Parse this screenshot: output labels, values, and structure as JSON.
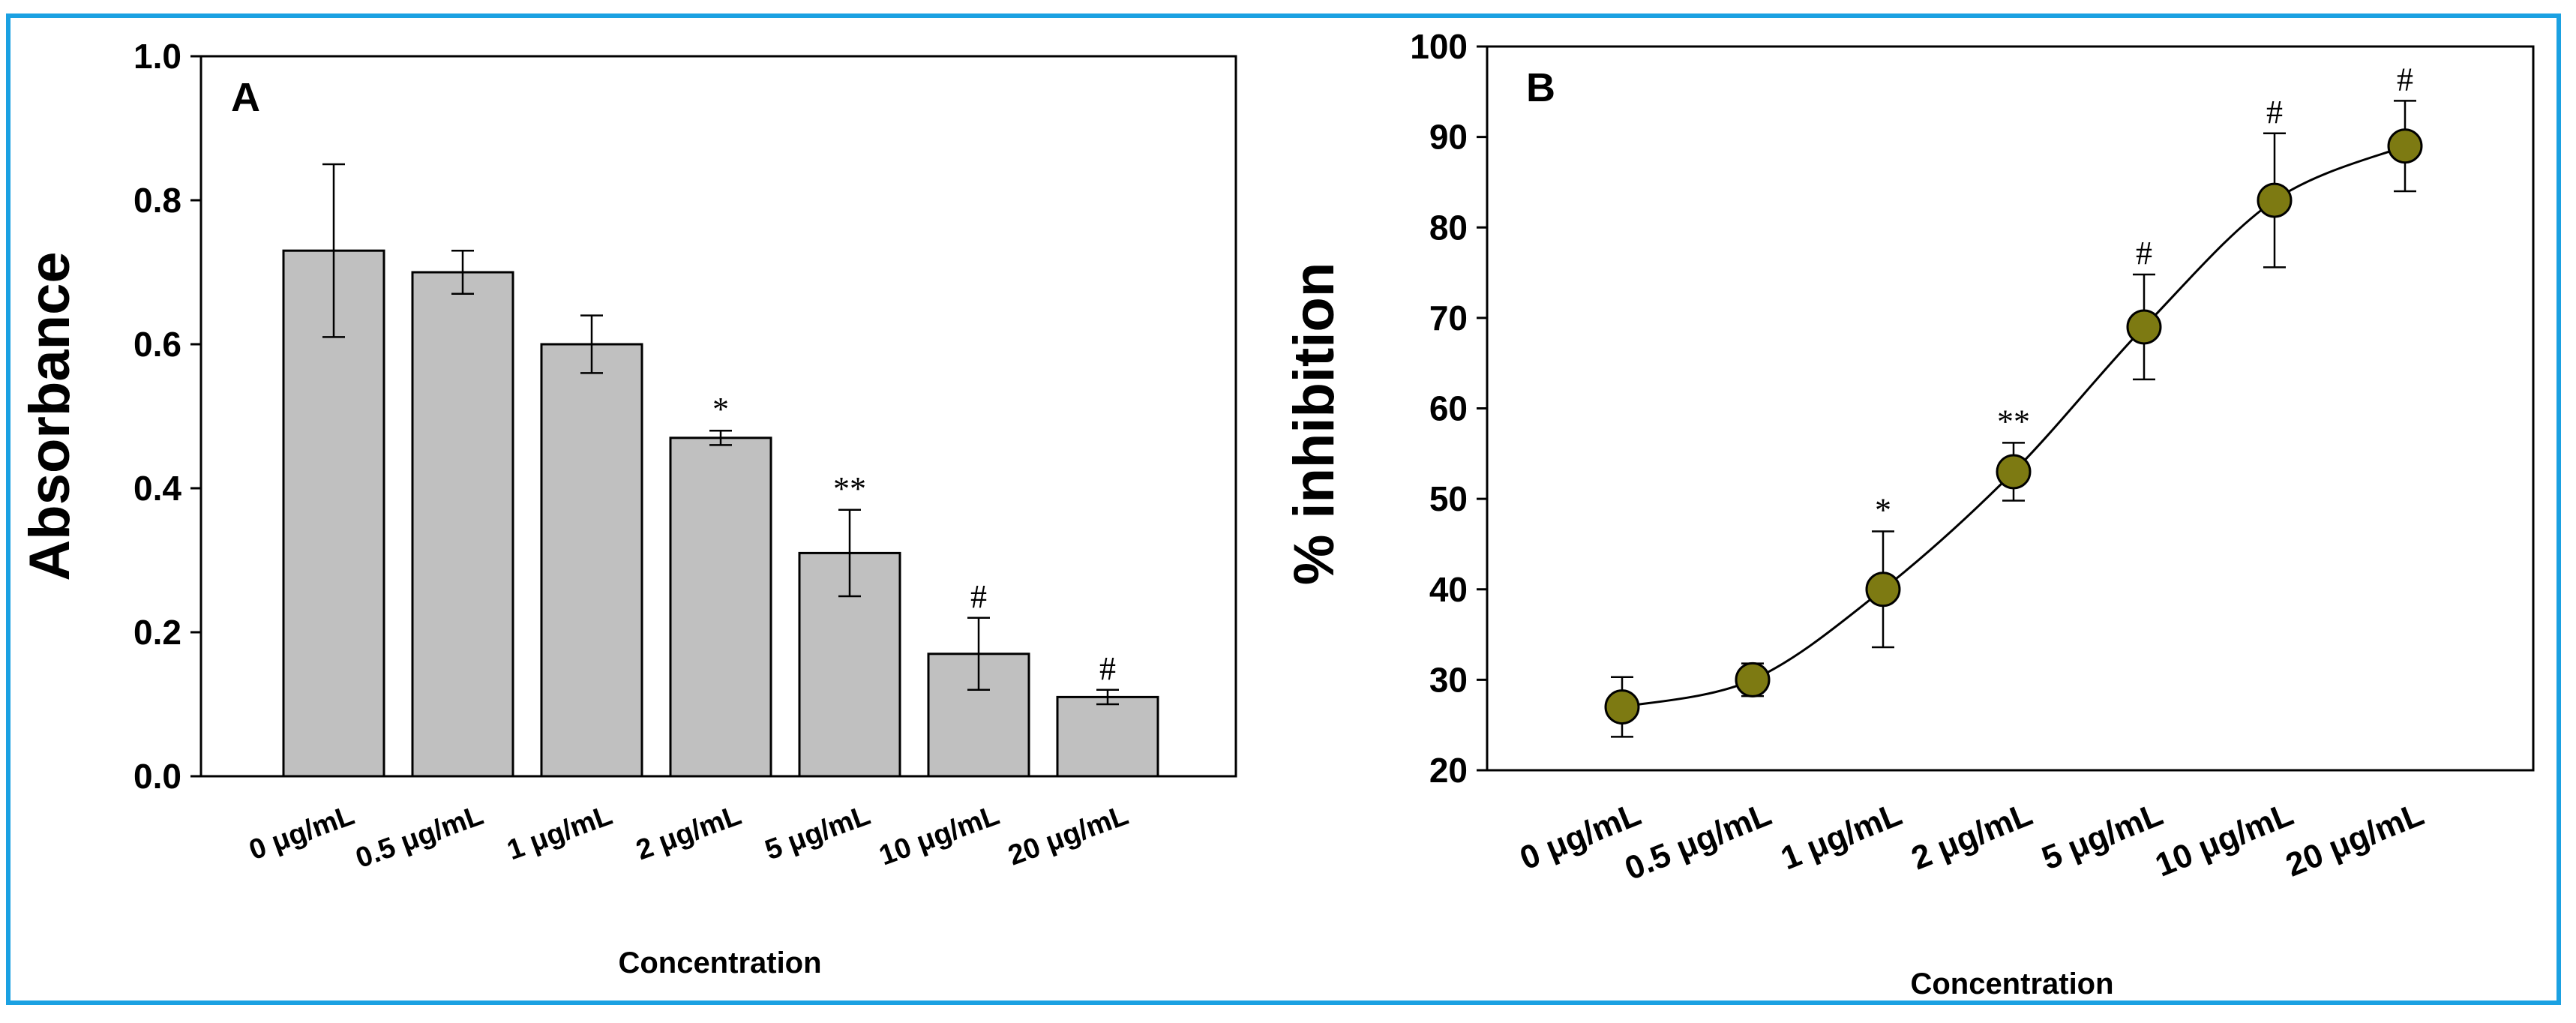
{
  "chart_data": [
    {
      "type": "bar",
      "panel_label": "A",
      "categories": [
        "0 μg/mL",
        "0.5 μg/mL",
        "1 μg/mL",
        "2 μg/mL",
        "5 μg/mL",
        "10 μg/mL",
        "20 μg/mL"
      ],
      "values": [
        0.73,
        0.7,
        0.6,
        0.47,
        0.31,
        0.17,
        0.11
      ],
      "errors": [
        0.12,
        0.03,
        0.04,
        0.01,
        0.06,
        0.05,
        0.01
      ],
      "significance": [
        "",
        "",
        "",
        "*",
        "**",
        "#",
        "#"
      ],
      "xlabel": "Concentration",
      "ylabel": "Absorbance",
      "ylim": [
        0,
        1.0
      ],
      "yticks": [
        "0.0",
        "0.2",
        "0.4",
        "0.6",
        "0.8",
        "1.0"
      ],
      "bar_color": "#c0c0c0"
    },
    {
      "type": "line",
      "panel_label": "B",
      "categories": [
        "0 μg/mL",
        "0.5 μg/mL",
        "1 μg/mL",
        "2 μg/mL",
        "5 μg/mL",
        "10 μg/mL",
        "20 μg/mL"
      ],
      "values": [
        27,
        30,
        40,
        53,
        69,
        83,
        89
      ],
      "errors": [
        3.3,
        1.8,
        6.4,
        3.2,
        5.8,
        7.4,
        5.0
      ],
      "significance": [
        "",
        "",
        "*",
        "**",
        "#",
        "#",
        "#"
      ],
      "xlabel": "Concentration",
      "ylabel": "% inhibition",
      "ylim": [
        20,
        100
      ],
      "yticks": [
        "20",
        "30",
        "40",
        "50",
        "60",
        "70",
        "80",
        "90",
        "100"
      ],
      "marker_color": "#7d7a12"
    }
  ]
}
